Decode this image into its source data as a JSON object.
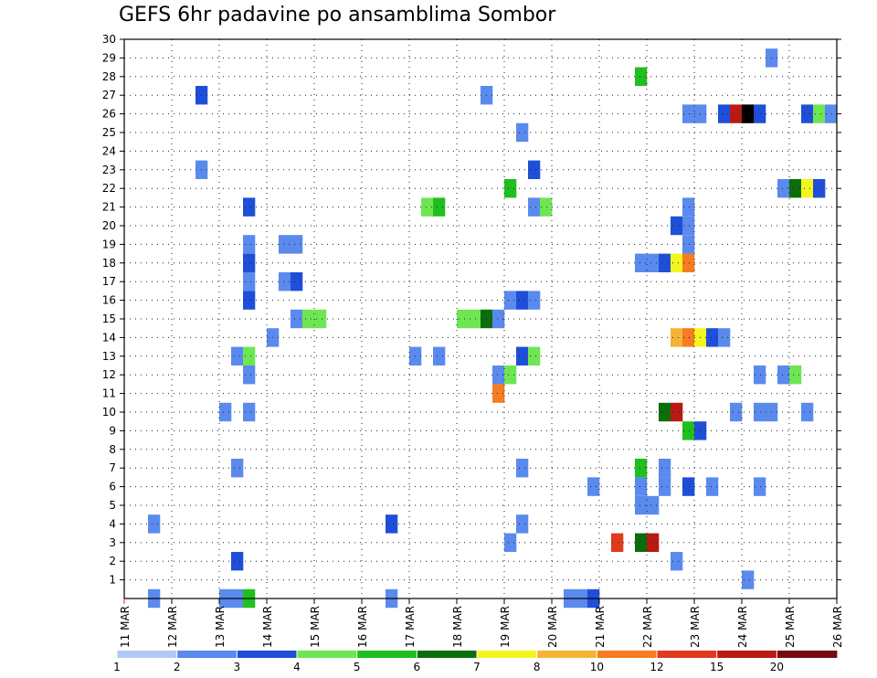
{
  "chart_data": {
    "type": "heatmap",
    "title": "GEFS 6hr padavine po ansamblima Sombor",
    "xlabel": "",
    "ylabel": "",
    "y_ticks": [
      "1",
      "2",
      "3",
      "4",
      "5",
      "6",
      "7",
      "8",
      "9",
      "10",
      "11",
      "12",
      "13",
      "14",
      "15",
      "16",
      "17",
      "18",
      "19",
      "20",
      "21",
      "22",
      "23",
      "24",
      "25",
      "26",
      "27",
      "28",
      "29",
      "30"
    ],
    "x_ticks": [
      "11 MAR",
      "12 MAR",
      "13 MAR",
      "14 MAR",
      "15 MAR",
      "16 MAR",
      "17 MAR",
      "18 MAR",
      "19 MAR",
      "20 MAR",
      "21 MAR",
      "22 MAR",
      "23 MAR",
      "24 MAR",
      "25 MAR",
      "26 MAR"
    ],
    "x_unit": "days since 11 MAR 00Z",
    "xlim": [
      0,
      15
    ],
    "ylim": [
      0,
      30
    ],
    "grid": true,
    "colorbar": {
      "labels": [
        "1",
        "2",
        "3",
        "4",
        "5",
        "6",
        "7",
        "8",
        "10",
        "12",
        "15",
        "20"
      ],
      "colors": [
        "#b4c8f5",
        "#5a8aee",
        "#1f4fd8",
        "#6ee654",
        "#1fbf1f",
        "#0a6e0a",
        "#f5f51f",
        "#f5b436",
        "#f57d1f",
        "#e03a1f",
        "#b81a14",
        "#7a0a0a"
      ]
    },
    "cells": [
      [
        0.5,
        0,
        1
      ],
      [
        2.0,
        0,
        1
      ],
      [
        2.25,
        0,
        1
      ],
      [
        2.5,
        0,
        4
      ],
      [
        5.5,
        0,
        1
      ],
      [
        9.25,
        0,
        1
      ],
      [
        9.5,
        0,
        1
      ],
      [
        9.75,
        0,
        2
      ],
      [
        13.0,
        1,
        1
      ],
      [
        2.25,
        2,
        2
      ],
      [
        11.5,
        2,
        1
      ],
      [
        8.0,
        3,
        1
      ],
      [
        10.25,
        3,
        9
      ],
      [
        10.75,
        3,
        5
      ],
      [
        11.0,
        3,
        10
      ],
      [
        0.5,
        4,
        1
      ],
      [
        5.5,
        4,
        2
      ],
      [
        8.25,
        4,
        1
      ],
      [
        10.75,
        5,
        1
      ],
      [
        11.0,
        5,
        1
      ],
      [
        9.75,
        6,
        1
      ],
      [
        10.75,
        6,
        1
      ],
      [
        11.25,
        6,
        1
      ],
      [
        11.75,
        6,
        2
      ],
      [
        12.25,
        6,
        1
      ],
      [
        13.25,
        6,
        1
      ],
      [
        2.25,
        7,
        1
      ],
      [
        8.25,
        7,
        1
      ],
      [
        10.75,
        7,
        4
      ],
      [
        11.25,
        7,
        1
      ],
      [
        11.75,
        9,
        4
      ],
      [
        12.0,
        9,
        2
      ],
      [
        2.0,
        10,
        1
      ],
      [
        2.5,
        10,
        1
      ],
      [
        11.25,
        10,
        5
      ],
      [
        11.5,
        10,
        10
      ],
      [
        12.75,
        10,
        1
      ],
      [
        13.25,
        10,
        1
      ],
      [
        13.5,
        10,
        1
      ],
      [
        14.25,
        10,
        1
      ],
      [
        7.75,
        11,
        8
      ],
      [
        2.5,
        12,
        1
      ],
      [
        7.75,
        12,
        1
      ],
      [
        8.0,
        12,
        3
      ],
      [
        13.25,
        12,
        1
      ],
      [
        13.75,
        12,
        1
      ],
      [
        14.0,
        12,
        3
      ],
      [
        2.25,
        13,
        1
      ],
      [
        2.5,
        13,
        3
      ],
      [
        6.0,
        13,
        1
      ],
      [
        6.5,
        13,
        1
      ],
      [
        8.25,
        13,
        2
      ],
      [
        8.5,
        13,
        3
      ],
      [
        3.0,
        14,
        1
      ],
      [
        11.5,
        14,
        7
      ],
      [
        11.75,
        14,
        8
      ],
      [
        12.0,
        14,
        6
      ],
      [
        12.25,
        14,
        2
      ],
      [
        12.5,
        14,
        1
      ],
      [
        3.5,
        15,
        1
      ],
      [
        3.75,
        15,
        3
      ],
      [
        4.0,
        15,
        3
      ],
      [
        7.0,
        15,
        3
      ],
      [
        7.25,
        15,
        3
      ],
      [
        7.5,
        15,
        5
      ],
      [
        7.75,
        15,
        1
      ],
      [
        2.5,
        16,
        2
      ],
      [
        8.0,
        16,
        1
      ],
      [
        8.25,
        16,
        2
      ],
      [
        8.5,
        16,
        1
      ],
      [
        2.5,
        17,
        1
      ],
      [
        3.25,
        17,
        1
      ],
      [
        3.5,
        17,
        2
      ],
      [
        2.5,
        18,
        2
      ],
      [
        10.75,
        18,
        1
      ],
      [
        11.0,
        18,
        1
      ],
      [
        11.25,
        18,
        2
      ],
      [
        11.5,
        18,
        6
      ],
      [
        11.75,
        18,
        8
      ],
      [
        2.5,
        19,
        1
      ],
      [
        3.25,
        19,
        1
      ],
      [
        3.5,
        19,
        1
      ],
      [
        11.75,
        19,
        1
      ],
      [
        11.5,
        20,
        2
      ],
      [
        11.75,
        20,
        1
      ],
      [
        2.5,
        21,
        2
      ],
      [
        6.25,
        21,
        3
      ],
      [
        6.5,
        21,
        4
      ],
      [
        8.5,
        21,
        1
      ],
      [
        8.75,
        21,
        3
      ],
      [
        11.75,
        21,
        1
      ],
      [
        8.0,
        22,
        4
      ],
      [
        13.75,
        22,
        1
      ],
      [
        14.0,
        22,
        5
      ],
      [
        14.25,
        22,
        6
      ],
      [
        14.5,
        22,
        2
      ],
      [
        1.5,
        23,
        1
      ],
      [
        8.5,
        23,
        2
      ],
      [
        8.25,
        25,
        1
      ],
      [
        11.75,
        26,
        1
      ],
      [
        12.0,
        26,
        1
      ],
      [
        12.5,
        26,
        2
      ],
      [
        12.75,
        26,
        10
      ],
      [
        13.0,
        26,
        12
      ],
      [
        13.25,
        26,
        2
      ],
      [
        14.25,
        26,
        2
      ],
      [
        14.5,
        26,
        3
      ],
      [
        14.75,
        26,
        1
      ],
      [
        1.5,
        27,
        2
      ],
      [
        7.5,
        27,
        1
      ],
      [
        10.75,
        28,
        4
      ],
      [
        13.5,
        29,
        1
      ]
    ]
  }
}
